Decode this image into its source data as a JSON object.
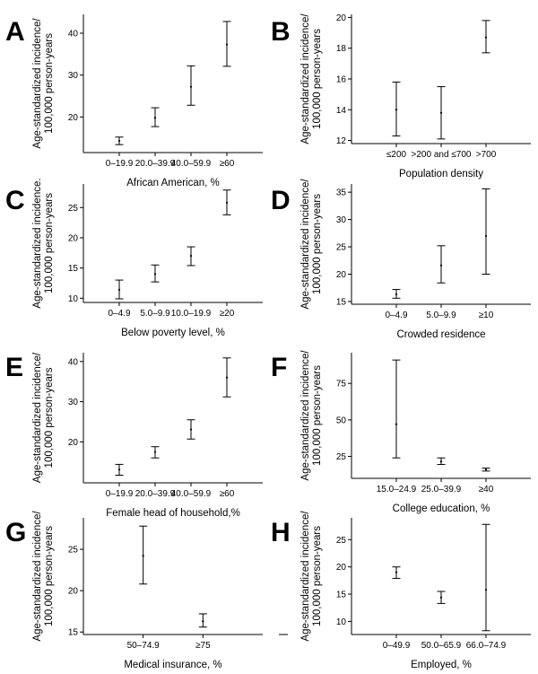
{
  "chart_data": [
    {
      "panel": "A",
      "type": "errorbar",
      "categories": [
        "0–19.9",
        "20.0–39.9",
        "40.0–59.9",
        "≥60"
      ],
      "values": [
        14.3,
        19.8,
        27.2,
        37.3
      ],
      "lower": [
        13.4,
        17.7,
        22.8,
        32.1
      ],
      "upper": [
        15.2,
        22.2,
        32.2,
        42.8
      ],
      "xlabel": "African American, %",
      "ylabel": "Age-standardized incidence/ 100,000 person-years",
      "ylim": [
        11.5,
        44.5
      ],
      "yticks": [
        20,
        30,
        40
      ]
    },
    {
      "panel": "B",
      "type": "errorbar",
      "categories": [
        "≤200",
        ">200 and ≤700",
        ">700"
      ],
      "values": [
        14.0,
        13.8,
        18.7
      ],
      "lower": [
        12.3,
        12.1,
        17.7
      ],
      "upper": [
        15.8,
        15.5,
        19.8
      ],
      "xlabel": "Population density",
      "ylabel": "Age-standardized incidence/ 100,000 person-years",
      "ylim": [
        11.8,
        20.2
      ],
      "yticks": [
        12,
        14,
        16,
        18,
        20
      ]
    },
    {
      "panel": "C",
      "type": "errorbar",
      "categories": [
        "0–4.9",
        "5.0–9.9",
        "10.0–19.9",
        "≥20"
      ],
      "values": [
        11.4,
        14.0,
        17.0,
        25.8
      ],
      "lower": [
        9.9,
        12.7,
        15.4,
        23.8
      ],
      "upper": [
        13.0,
        15.5,
        18.5,
        27.9
      ],
      "xlabel": "Below poverty level, %",
      "ylabel": "Age-standardized incidence. 100,000 person-years",
      "ylim": [
        9.3,
        28.9
      ],
      "yticks": [
        10,
        15,
        20,
        25
      ]
    },
    {
      "panel": "D",
      "type": "errorbar",
      "categories": [
        "0–4.9",
        "5.0–9.9",
        "≥10"
      ],
      "values": [
        16.3,
        21.6,
        27.0
      ],
      "lower": [
        15.6,
        18.4,
        20.0
      ],
      "upper": [
        17.2,
        25.2,
        35.6
      ],
      "xlabel": "Crowded residence",
      "ylabel": "Age-standardized incidence/ 100,000 person-years",
      "ylim": [
        14.5,
        36.5
      ],
      "yticks": [
        15,
        20,
        25,
        30,
        35
      ]
    },
    {
      "panel": "E",
      "type": "errorbar",
      "categories": [
        "0–19.9",
        "20.0–39.9",
        "40.0–59.9",
        "≥60"
      ],
      "values": [
        13.1,
        17.5,
        23.1,
        36.0
      ],
      "lower": [
        11.7,
        16.0,
        20.7,
        31.2
      ],
      "upper": [
        14.4,
        18.8,
        25.5,
        40.9
      ],
      "xlabel": "Female head of household,%",
      "ylabel": "Age-standardized incidence/ 100,000 person-years",
      "ylim": [
        9.8,
        42.2
      ],
      "yticks": [
        20,
        30,
        40
      ]
    },
    {
      "panel": "F",
      "type": "errorbar",
      "categories": [
        "15.0–24.9",
        "25.0–39.9",
        "≥40"
      ],
      "values": [
        47.0,
        21.5,
        16.0
      ],
      "lower": [
        24.0,
        19.5,
        15.0
      ],
      "upper": [
        91.0,
        24.0,
        17.0
      ],
      "xlabel": "College education, %",
      "ylabel": "Age-standardized incidence/ 100,000 person-years",
      "ylim": [
        10,
        96
      ],
      "yticks": [
        25,
        50,
        75
      ],
      "ytick_labels": [
        "25",
        "50",
        "75"
      ]
    },
    {
      "panel": "G",
      "type": "errorbar",
      "categories": [
        "50–74.9",
        "≥75"
      ],
      "values": [
        24.2,
        16.3
      ],
      "lower": [
        20.8,
        15.6
      ],
      "upper": [
        27.8,
        17.2
      ],
      "xlabel": "Medical insurance, %",
      "ylabel": "Age-standardized incidence/ 100,000 person-years",
      "ylim": [
        14.7,
        28.8
      ],
      "yticks": [
        15,
        20,
        25
      ]
    },
    {
      "panel": "H",
      "type": "errorbar",
      "categories": [
        "0–49.9",
        "50.0–65.9",
        "66.0–74.9"
      ],
      "values": [
        19.0,
        14.4,
        15.8
      ],
      "lower": [
        17.9,
        13.3,
        8.3
      ],
      "upper": [
        20.0,
        15.5,
        27.8
      ],
      "xlabel": "Employed, %",
      "ylabel": "Age-standardized incidence/ 100,000 person-years",
      "ylim": [
        7.6,
        29.0
      ],
      "yticks": [
        10,
        15,
        20,
        25
      ]
    }
  ]
}
